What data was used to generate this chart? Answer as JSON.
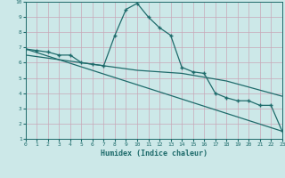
{
  "xlabel": "Humidex (Indice chaleur)",
  "bg_color": "#cce8e8",
  "grid_color": "#aacccc",
  "line_color": "#1e6b6b",
  "xlim": [
    0,
    23
  ],
  "ylim": [
    1,
    10
  ],
  "xticks": [
    0,
    1,
    2,
    3,
    4,
    5,
    6,
    7,
    8,
    9,
    10,
    11,
    12,
    13,
    14,
    15,
    16,
    17,
    18,
    19,
    20,
    21,
    22,
    23
  ],
  "yticks": [
    1,
    2,
    3,
    4,
    5,
    6,
    7,
    8,
    9,
    10
  ],
  "series1_x": [
    0,
    1,
    2,
    3,
    4,
    5,
    6,
    7,
    8,
    9,
    10,
    11,
    12,
    13,
    14,
    15,
    16,
    17,
    18,
    19,
    20,
    21,
    22,
    23
  ],
  "series1_y": [
    6.9,
    6.8,
    6.7,
    6.5,
    6.5,
    6.0,
    5.9,
    5.8,
    7.8,
    9.5,
    9.9,
    9.0,
    8.3,
    7.8,
    5.7,
    5.4,
    5.3,
    4.0,
    3.7,
    3.5,
    3.5,
    3.2,
    3.2,
    1.5
  ],
  "series2_x": [
    0,
    23
  ],
  "series2_y": [
    6.9,
    1.5
  ],
  "series3_x": [
    0,
    6,
    10,
    14,
    18,
    23
  ],
  "series3_y": [
    6.5,
    5.9,
    5.5,
    5.3,
    4.8,
    3.8
  ]
}
